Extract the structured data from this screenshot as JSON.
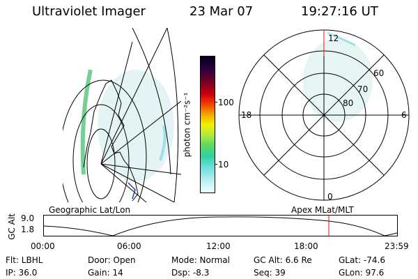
{
  "header": {
    "instrument": "Ultraviolet Imager",
    "date": "23 Mar 07",
    "time": "19:27:16 UT"
  },
  "colorbar": {
    "unit_label": "photon cm⁻²s⁻¹",
    "tick_100": "100",
    "tick_10": "10"
  },
  "polar": {
    "label_top": "12",
    "label_bottom": "0",
    "label_left": "18",
    "label_right": "6",
    "lat_60": "60",
    "lat_70": "70",
    "lat_80": "80"
  },
  "panel_labels": {
    "left": "Geographic Lat/Lon",
    "right": "Apex MLat/MLT"
  },
  "orbit_plot": {
    "ylabel": "GC Alt",
    "y_top": "9.0",
    "y_bottom": "1.8",
    "x_ticks": [
      "00:00",
      "06:00",
      "12:00",
      "18:00",
      "23:59"
    ]
  },
  "status": {
    "flt": "Flt: LBHL",
    "ip": "IP: 36.0",
    "door": "Door: Open",
    "gain": "Gain: 14",
    "mode": "Mode: Normal",
    "dsp": "Dsp:   -8.3",
    "gcalt": "GC Alt: 6.6 Re",
    "seq": "Seq: 39",
    "glat": "GLat:  -74.6",
    "glon": "GLon:  97.6"
  }
}
